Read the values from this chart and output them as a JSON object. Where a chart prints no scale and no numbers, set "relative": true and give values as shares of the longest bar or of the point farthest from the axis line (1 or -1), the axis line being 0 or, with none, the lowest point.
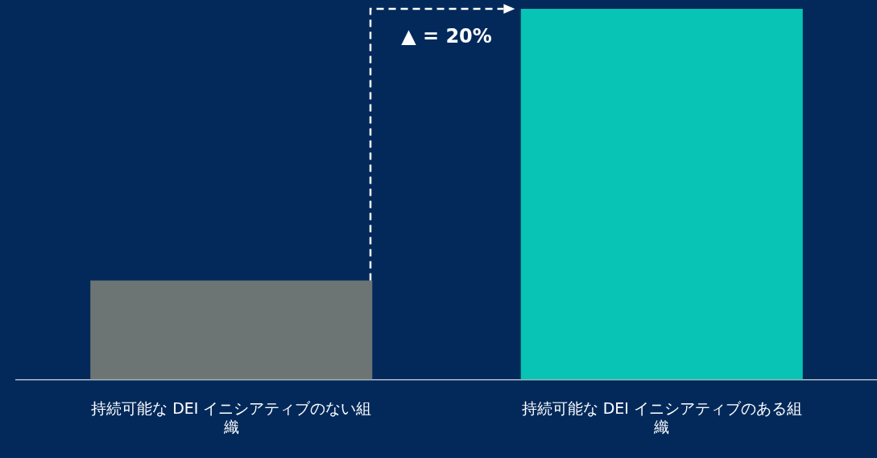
{
  "chart_data": {
    "type": "bar",
    "relative": true,
    "categories": [
      "持続可能な DEI イニシアティブのない組織",
      "持続可能な DEI イニシアティブのある組織"
    ],
    "values": [
      0.267,
      1
    ],
    "colors": [
      "#6d7574",
      "#07c4b4"
    ],
    "annotations": [
      "▲ = 20%"
    ],
    "grid": false,
    "legend": false
  }
}
